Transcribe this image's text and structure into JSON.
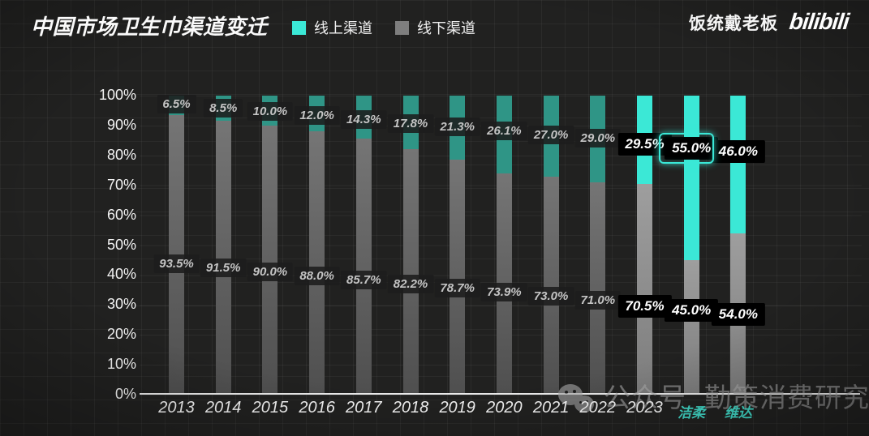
{
  "title": "中国市场卫生巾渠道变迁",
  "header": {
    "brand_text": "饭统戴老板",
    "logo_text": "bilibili"
  },
  "legend": [
    {
      "label": "线上渠道",
      "color": "#3be8d6"
    },
    {
      "label": "线下渠道",
      "color": "#7e7e7e"
    }
  ],
  "watermark": {
    "icon": "wechat-icon",
    "prefix": "公众号",
    "name": "勤策消费研究"
  },
  "chart_data": {
    "type": "bar",
    "stacked": true,
    "unit": "%",
    "title": "中国市场卫生巾渠道变迁",
    "categories": [
      "2013",
      "2014",
      "2015",
      "2016",
      "2017",
      "2018",
      "2019",
      "2020",
      "2021",
      "2022",
      "2023",
      "洁柔",
      "维达"
    ],
    "series": [
      {
        "name": "线上渠道",
        "values": [
          6.5,
          8.5,
          10.0,
          12.0,
          14.3,
          17.8,
          21.3,
          26.1,
          27.0,
          29.0,
          29.5,
          55.0,
          46.0
        ]
      },
      {
        "name": "线下渠道",
        "values": [
          93.5,
          91.5,
          90.0,
          88.0,
          85.7,
          82.2,
          78.7,
          73.9,
          73.0,
          71.0,
          70.5,
          45.0,
          54.0
        ]
      }
    ],
    "y_ticks": [
      "0%",
      "10%",
      "20%",
      "30%",
      "40%",
      "50%",
      "60%",
      "70%",
      "80%",
      "90%",
      "100%"
    ],
    "ylim": [
      0,
      100
    ],
    "grid": true,
    "legend_position": "top",
    "highlighted_categories": [
      "2023",
      "洁柔",
      "维达"
    ],
    "brand_categories": [
      "洁柔",
      "维达"
    ],
    "highlight_ring": {
      "category": "洁柔",
      "series": "线上渠道",
      "label": "55.0%"
    },
    "colors": {
      "online_muted": "#2f9586",
      "online_bright": "#3be8d6",
      "offline_muted_top": "#757575",
      "offline_muted_bottom": "#4f4f4f",
      "offline_bright_top": "#9e9e9e",
      "offline_bright_bottom": "#7d7d7d",
      "label_bg_muted": "#1c1c1c",
      "label_text_muted": "#c4c4c4",
      "label_bg_bright": "#000000",
      "label_text_bright": "#ffffff"
    }
  }
}
